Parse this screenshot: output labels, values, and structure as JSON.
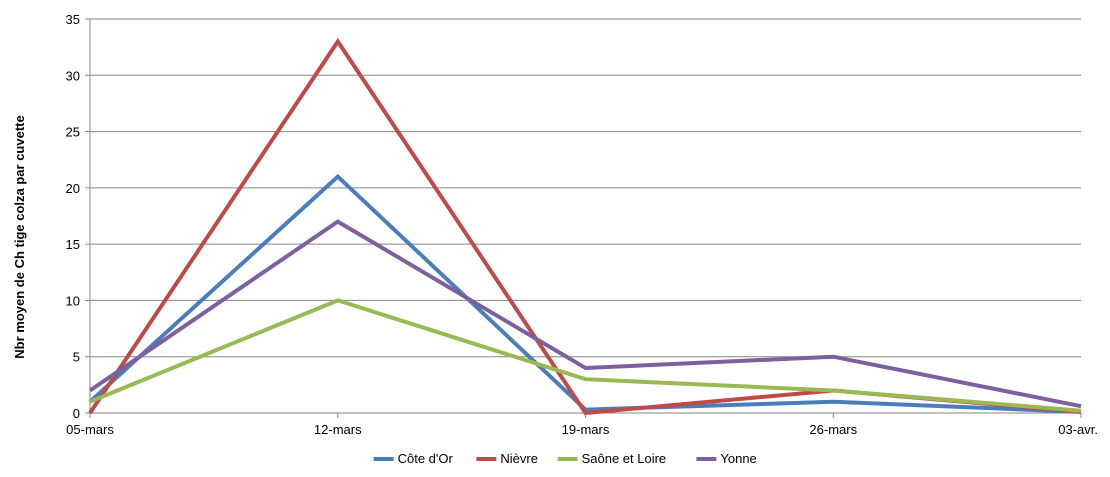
{
  "chart_data": {
    "type": "line",
    "title": "",
    "xlabel": "",
    "ylabel": "Nbr moyen de Ch tige colza par cuvette",
    "categories": [
      "05-mars",
      "12-mars",
      "19-mars",
      "26-mars",
      "03-avr."
    ],
    "ylim": [
      0,
      35
    ],
    "yticks": [
      0,
      5,
      10,
      15,
      20,
      25,
      30,
      35
    ],
    "grid": true,
    "legend_position": "bottom",
    "series": [
      {
        "name": "Côte d'Or",
        "color": "#4a7ebb",
        "values": [
          1,
          21,
          0.3,
          1,
          0.1
        ]
      },
      {
        "name": "Nièvre",
        "color": "#be4b48",
        "values": [
          0,
          33,
          0,
          2,
          0.1
        ]
      },
      {
        "name": "Saône et Loire",
        "color": "#98b954",
        "values": [
          1,
          10,
          3,
          2,
          0.2
        ]
      },
      {
        "name": "Yonne",
        "color": "#7d60a0",
        "values": [
          2,
          17,
          4,
          5,
          0.6
        ]
      }
    ]
  }
}
